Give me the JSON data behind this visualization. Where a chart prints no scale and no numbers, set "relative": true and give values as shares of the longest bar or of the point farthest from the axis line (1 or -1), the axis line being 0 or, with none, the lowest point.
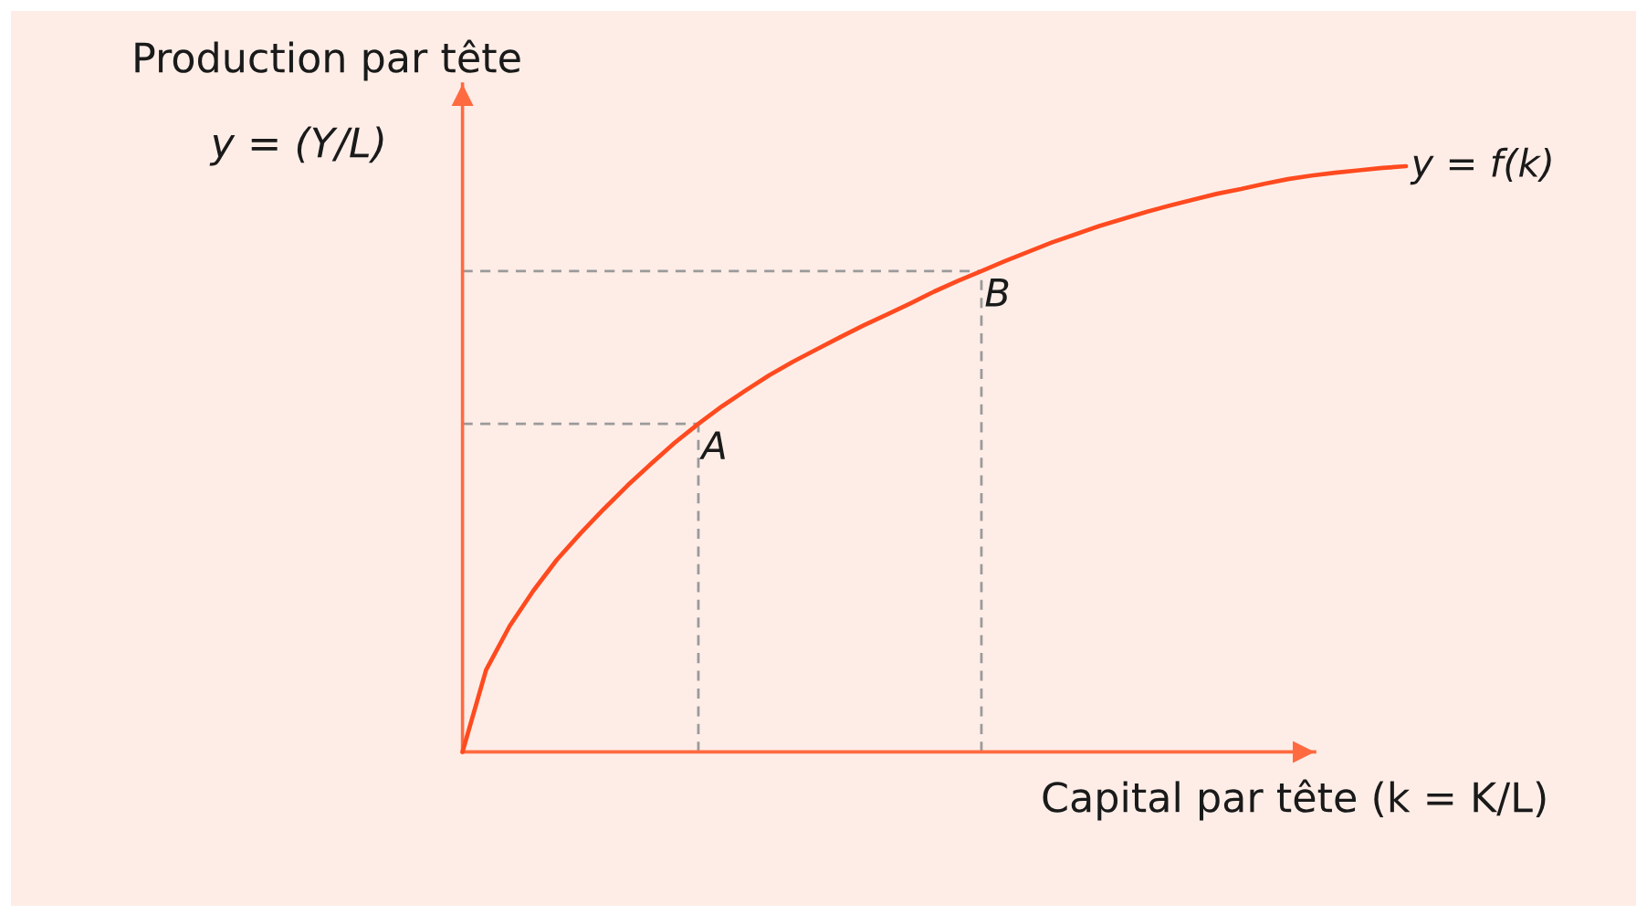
{
  "chart_data": {
    "type": "line",
    "relative": true,
    "line_style": "solid",
    "xlabel": "Capital par tête (k = K/L)",
    "ylabel": "Production par tête\ny = (Y/L)",
    "categories": [
      null,
      null,
      null,
      null,
      null,
      null,
      null,
      null,
      null,
      null,
      null,
      null,
      null,
      null,
      null,
      null,
      null,
      null,
      null,
      null,
      null,
      null,
      null,
      null,
      null,
      null,
      null,
      null,
      null,
      null,
      null,
      null,
      null,
      null,
      null,
      null,
      null,
      null,
      null,
      null,
      null
    ],
    "series": [
      {
        "name": "y = f(k)",
        "color": "#ff4a1f",
        "values": [
          0,
          0.14,
          0.215,
          0.275,
          0.328,
          0.373,
          0.415,
          0.455,
          0.492,
          0.528,
          0.56,
          0.59,
          0.617,
          0.643,
          0.666,
          0.687,
          0.708,
          0.728,
          0.747,
          0.766,
          0.786,
          0.804,
          0.821,
          0.838,
          0.854,
          0.87,
          0.884,
          0.898,
          0.91,
          0.922,
          0.933,
          0.943,
          0.953,
          0.961,
          0.97,
          0.978,
          0.984,
          0.989,
          0.993,
          0.997,
          1
        ]
      }
    ],
    "annotations": [
      {
        "text": "A",
        "y": 0.56
      },
      {
        "text": "B",
        "y": 0.821
      }
    ]
  }
}
